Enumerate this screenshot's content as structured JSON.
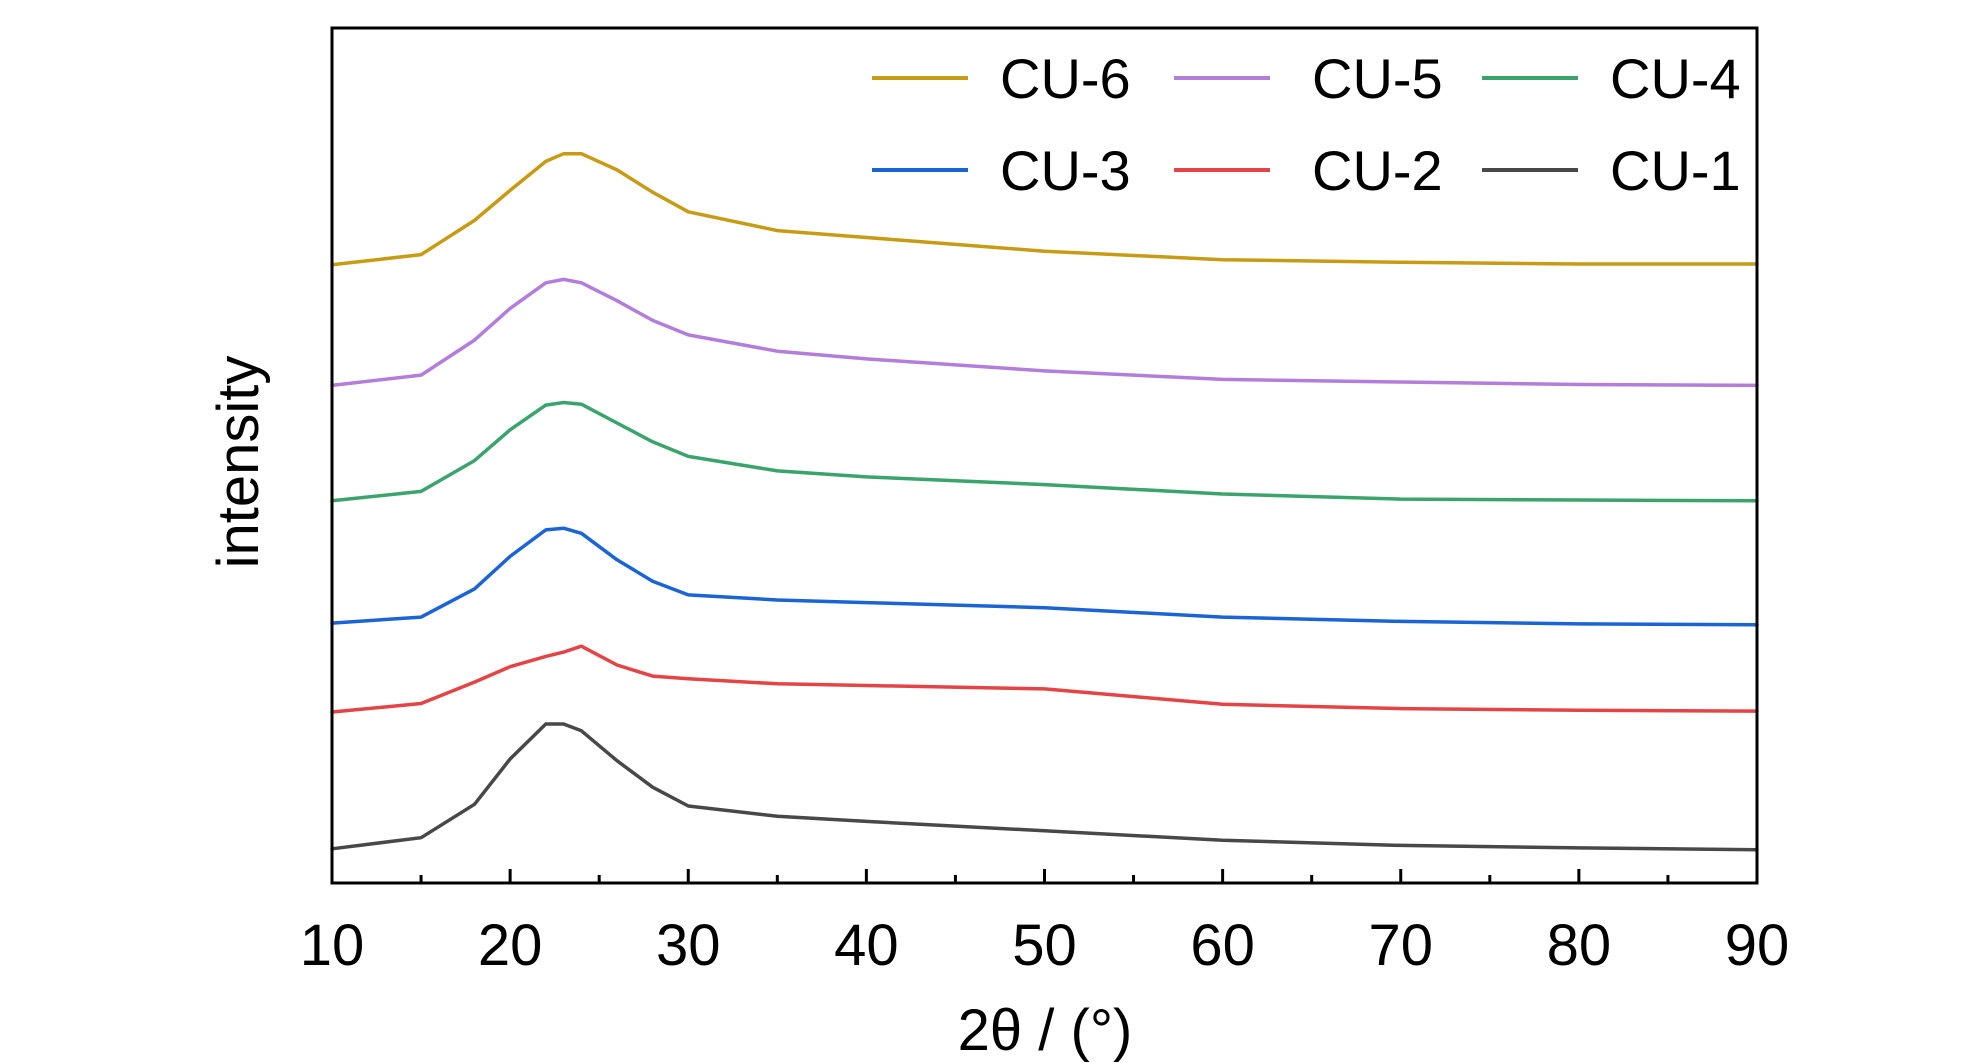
{
  "chart_data": {
    "type": "line",
    "xlabel": "2θ / (°)",
    "ylabel": "intensity",
    "xlim": [
      10,
      90
    ],
    "ylim": [
      0,
      100
    ],
    "x_ticks": [
      10,
      20,
      30,
      40,
      50,
      60,
      70,
      80,
      90
    ],
    "x_tick_labels": [
      "10",
      "20",
      "30",
      "40",
      "50",
      "60",
      "70",
      "80",
      "90"
    ],
    "grid": false,
    "y_ticks_shown": false,
    "legend_placement": "top-right",
    "legend_columns": 3,
    "x": [
      10,
      15,
      18,
      20,
      22,
      23,
      24,
      26,
      28,
      30,
      35,
      40,
      50,
      60,
      70,
      80,
      90
    ],
    "series": [
      {
        "name": "CU-6",
        "color": "#C89B14",
        "values": [
          72.3,
          73.5,
          77.5,
          81.0,
          84.4,
          85.3,
          85.3,
          83.4,
          80.8,
          78.5,
          76.3,
          75.5,
          73.9,
          72.9,
          72.6,
          72.4,
          72.4
        ]
      },
      {
        "name": "CU-5",
        "color": "#B27DDB",
        "values": [
          58.2,
          59.4,
          63.5,
          67.2,
          70.2,
          70.6,
          70.2,
          68.1,
          65.8,
          64.1,
          62.2,
          61.3,
          59.9,
          58.9,
          58.6,
          58.3,
          58.2
        ]
      },
      {
        "name": "CU-4",
        "color": "#3AA46C",
        "values": [
          44.7,
          45.8,
          49.4,
          53.0,
          55.9,
          56.2,
          56.0,
          53.8,
          51.6,
          49.9,
          48.2,
          47.5,
          46.6,
          45.5,
          44.9,
          44.8,
          44.7
        ]
      },
      {
        "name": "CU-3",
        "color": "#1A64D6",
        "values": [
          30.4,
          31.1,
          34.4,
          38.2,
          41.3,
          41.5,
          40.9,
          37.8,
          35.3,
          33.7,
          33.1,
          32.8,
          32.2,
          31.1,
          30.6,
          30.3,
          30.2
        ]
      },
      {
        "name": "CU-2",
        "color": "#E44445",
        "values": [
          20.0,
          21.0,
          23.5,
          25.3,
          26.5,
          27.0,
          27.7,
          25.5,
          24.2,
          23.9,
          23.3,
          23.1,
          22.7,
          20.9,
          20.4,
          20.2,
          20.1
        ]
      },
      {
        "name": "CU-1",
        "color": "#484848",
        "values": [
          4.0,
          5.3,
          9.2,
          14.5,
          18.6,
          18.6,
          17.8,
          14.3,
          11.2,
          9.0,
          7.8,
          7.2,
          6.1,
          5.0,
          4.4,
          4.1,
          3.9
        ]
      }
    ]
  }
}
